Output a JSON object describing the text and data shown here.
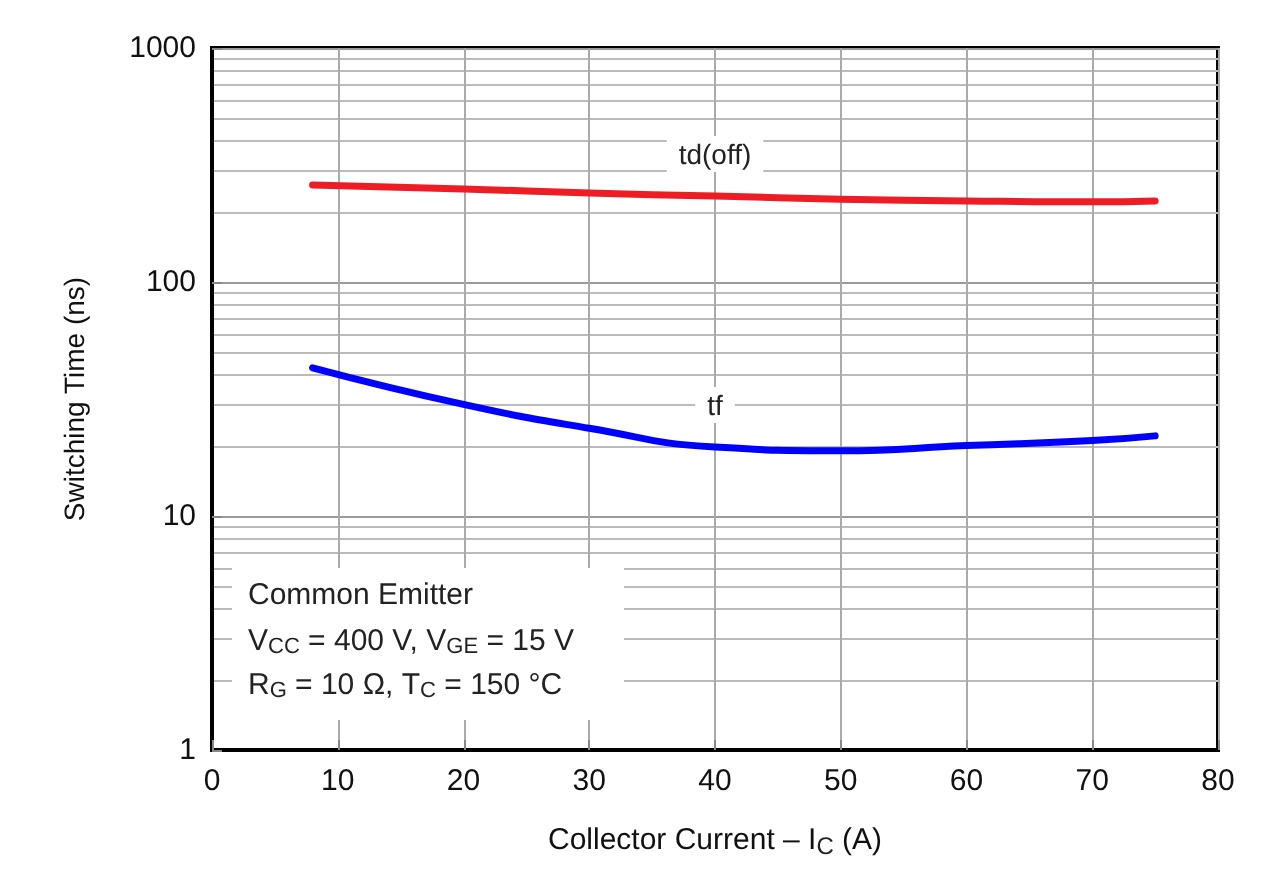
{
  "chart_data": {
    "type": "line",
    "xlabel": "Collector Current – I$_{C}$ (A)",
    "ylabel": "Switching Time (ns)",
    "x": [
      8,
      20,
      30,
      40,
      50,
      60,
      70,
      75
    ],
    "series": [
      {
        "name": "td(off)",
        "color": "#ee1c25",
        "values": [
          260,
          250,
          240,
          233,
          226,
          222,
          220,
          222
        ]
      },
      {
        "name": "tf",
        "color": "#0000ff",
        "values": [
          43,
          30,
          23.7,
          19.7,
          19,
          20,
          21,
          22
        ]
      }
    ],
    "xlim": [
      0,
      80
    ],
    "xticks": [
      0,
      10,
      20,
      30,
      40,
      50,
      60,
      70,
      80
    ],
    "ylim": [
      1,
      1000
    ],
    "yticks": [
      1,
      10,
      100,
      1000
    ],
    "log": true,
    "grid": true,
    "marker": "none",
    "line_style": "solid",
    "annotations": [
      "Common Emitter",
      "V$_{CC}$ = 400 V, V$_{GE}$ = 15 V",
      "R$_{G}$ = 10 Ω, T$_{C}$ = 150 °C"
    ]
  }
}
